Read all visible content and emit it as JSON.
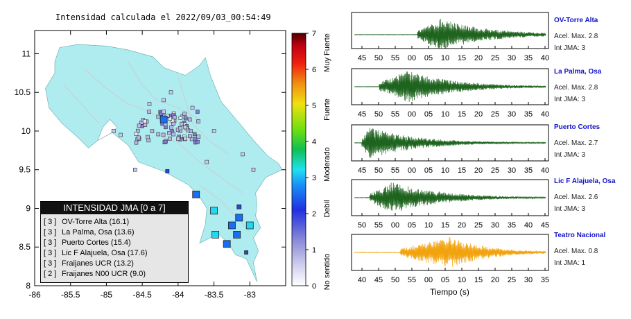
{
  "title": "Intensidad calculada el 2022/09/03_00:54:49",
  "map": {
    "lat_ticks": [
      "11",
      "10.5",
      "10",
      "9.5",
      "9",
      "8.5",
      "8"
    ],
    "lon_ticks": [
      "-86",
      "-85.5",
      "-85",
      "-84.5",
      "-84",
      "-83.5",
      "-83"
    ],
    "colors": {
      "land": "#aeecef",
      "sea": "#ffffff",
      "river": "#c8d2d6",
      "border": "#888888"
    }
  },
  "colorbar": {
    "ticks": [
      "0",
      "1",
      "2",
      "3",
      "4",
      "5",
      "6",
      "7"
    ],
    "labels": [
      "No sentido",
      "Debil",
      "Moderado",
      "Fuerte",
      "Muy Fuerte"
    ]
  },
  "legend": {
    "title": "INTENSIDAD JMA [0 a 7]",
    "items": [
      {
        "level": "[ 3 ]",
        "name": "OV-Torre Alta (16.1)"
      },
      {
        "level": "[ 3 ]",
        "name": "La Palma, Osa (13.6)"
      },
      {
        "level": "[ 3 ]",
        "name": "Puerto Cortes (15.4)"
      },
      {
        "level": "[ 3 ]",
        "name": "Lic F Alajuela, Osa (17.6)"
      },
      {
        "level": "[ 3 ]",
        "name": "Fraijanes UCR (13.2)"
      },
      {
        "level": "[ 2 ]",
        "name": "Fraijanes N00 UCR (9.0)"
      }
    ]
  },
  "stations": [
    {
      "name": "OV-Torre Alta",
      "acel": "Acel. Max. 2.8",
      "jma": "Int JMA: 3",
      "color": "#1e641e",
      "ticks": [
        "45",
        "50",
        "55",
        "00",
        "05",
        "10",
        "15",
        "20",
        "25",
        "30",
        "35",
        "40"
      ],
      "onset": 0.33,
      "peak": 0.45
    },
    {
      "name": "La Palma, Osa",
      "acel": "Acel. Max. 2.8",
      "jma": "Int JMA: 3",
      "color": "#1e641e",
      "ticks": [
        "45",
        "50",
        "55",
        "00",
        "05",
        "10",
        "15",
        "20",
        "25",
        "30",
        "35",
        "40"
      ],
      "onset": 0.13,
      "peak": 0.28
    },
    {
      "name": "Puerto Cortes",
      "acel": "Acel. Max. 2.7",
      "jma": "Int JMA: 3",
      "color": "#1e641e",
      "ticks": [
        "45",
        "50",
        "55",
        "00",
        "05",
        "10",
        "15",
        "20",
        "25",
        "30",
        "35",
        "40"
      ],
      "onset": 0.04,
      "peak": 0.08
    },
    {
      "name": "Lic F Alajuela, Osa",
      "acel": "Acel. Max. 2.6",
      "jma": "Int JMA: 3",
      "color": "#1e641e",
      "ticks": [
        "50",
        "55",
        "00",
        "05",
        "10",
        "15",
        "20",
        "25",
        "30",
        "35",
        "40",
        "45"
      ],
      "onset": 0.08,
      "peak": 0.2
    },
    {
      "name": "Teatro Nacional",
      "acel": "Acel. Max. 0.8",
      "jma": "Int JMA: 1",
      "color": "#f2a20c",
      "ticks": [
        "40",
        "45",
        "50",
        "55",
        "00",
        "05",
        "10",
        "15",
        "20",
        "25",
        "30",
        "35"
      ],
      "onset": 0.24,
      "peak": 0.5
    }
  ],
  "time_label": "Tiempo (s)"
}
